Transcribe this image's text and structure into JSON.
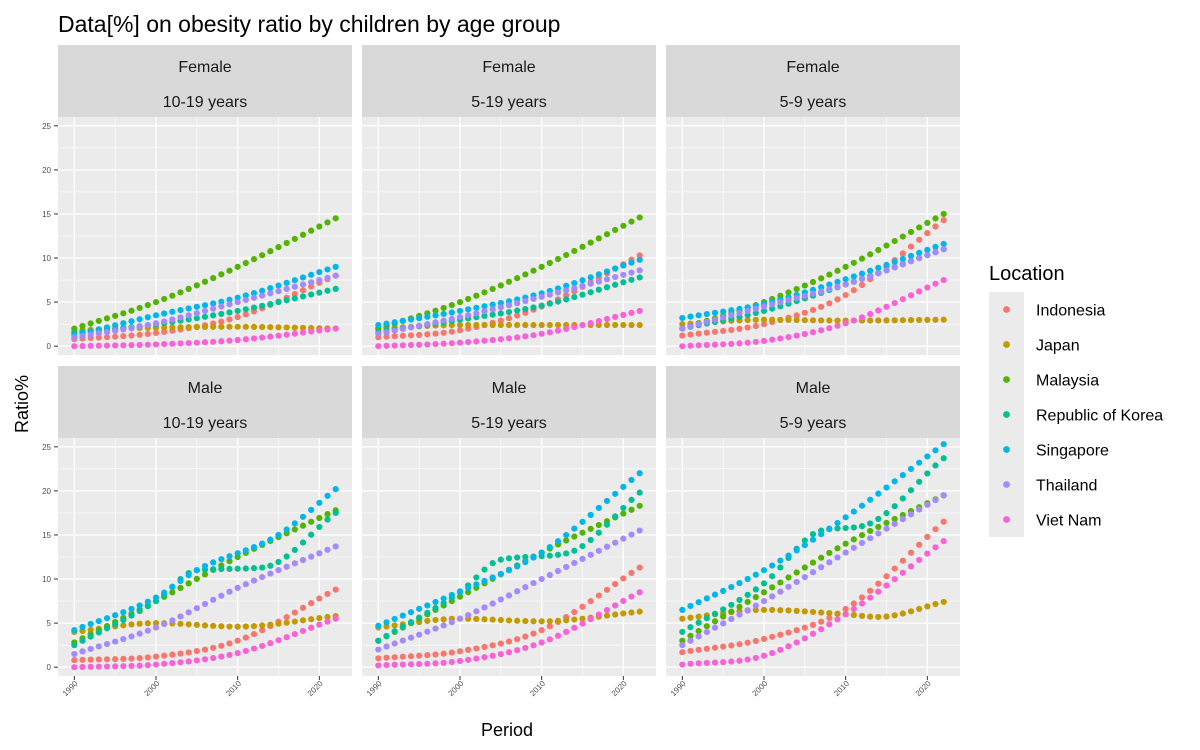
{
  "chart_data": {
    "type": "scatter",
    "title": "Data[%]  on obesity ratio by children by age group",
    "xlabel": "Period",
    "ylabel": "Ratio%",
    "xlim": [
      1988,
      2024
    ],
    "ylim": [
      -1,
      26
    ],
    "x_ticks": [
      "1990",
      "2000",
      "2010",
      "2020"
    ],
    "y_ticks": [
      "0",
      "5",
      "10",
      "15",
      "20",
      "25"
    ],
    "x_ticks_values": [
      1990,
      2000,
      2010,
      2020
    ],
    "y_ticks_values": [
      0,
      5,
      10,
      15,
      20,
      25
    ],
    "x_range": [
      1990,
      2022
    ],
    "facet_rows": [
      "Female",
      "Male"
    ],
    "facet_cols": [
      "10-19 years",
      "5-19  years",
      "5-9 years"
    ],
    "legend": {
      "title": "Location",
      "position": "right",
      "entries": [
        "Indonesia",
        "Japan",
        "Malaysia",
        "Republic of Korea",
        "Singapore",
        "Thailand",
        "Viet Nam"
      ],
      "colors": [
        "#F8766D",
        "#C49A00",
        "#53B400",
        "#00C094",
        "#00B6EB",
        "#A58AFF",
        "#FB61D7"
      ]
    },
    "panels": [
      {
        "row": "Female",
        "col": "10-19 years",
        "series": [
          {
            "name": "Indonesia",
            "anchors": [
              [
                1990,
                0.8
              ],
              [
                2000,
                1.5
              ],
              [
                2010,
                3.3
              ],
              [
                2022,
                8.0
              ]
            ]
          },
          {
            "name": "Japan",
            "anchors": [
              [
                1990,
                1.8
              ],
              [
                2000,
                2.1
              ],
              [
                2010,
                2.2
              ],
              [
                2022,
                2.0
              ]
            ]
          },
          {
            "name": "Malaysia",
            "anchors": [
              [
                1990,
                2.0
              ],
              [
                2000,
                5.0
              ],
              [
                2010,
                9.0
              ],
              [
                2022,
                14.5
              ]
            ]
          },
          {
            "name": "Republic of Korea",
            "anchors": [
              [
                1990,
                1.5
              ],
              [
                2000,
                2.5
              ],
              [
                2010,
                4.0
              ],
              [
                2022,
                6.5
              ]
            ]
          },
          {
            "name": "Singapore",
            "anchors": [
              [
                1990,
                1.2
              ],
              [
                2000,
                3.5
              ],
              [
                2010,
                5.5
              ],
              [
                2022,
                9.0
              ]
            ]
          },
          {
            "name": "Thailand",
            "anchors": [
              [
                1990,
                1.0
              ],
              [
                2000,
                2.6
              ],
              [
                2010,
                5.0
              ],
              [
                2022,
                8.0
              ]
            ]
          },
          {
            "name": "Viet Nam",
            "anchors": [
              [
                1990,
                0.0
              ],
              [
                2000,
                0.2
              ],
              [
                2010,
                0.7
              ],
              [
                2022,
                2.0
              ]
            ]
          }
        ]
      },
      {
        "row": "Female",
        "col": "5-19  years",
        "series": [
          {
            "name": "Indonesia",
            "anchors": [
              [
                1990,
                1.0
              ],
              [
                2000,
                1.8
              ],
              [
                2010,
                4.5
              ],
              [
                2022,
                10.3
              ]
            ]
          },
          {
            "name": "Japan",
            "anchors": [
              [
                1990,
                2.0
              ],
              [
                2000,
                2.4
              ],
              [
                2010,
                2.4
              ],
              [
                2022,
                2.4
              ]
            ]
          },
          {
            "name": "Malaysia",
            "anchors": [
              [
                1990,
                2.0
              ],
              [
                2000,
                5.0
              ],
              [
                2010,
                9.0
              ],
              [
                2022,
                14.6
              ]
            ]
          },
          {
            "name": "Republic of Korea",
            "anchors": [
              [
                1990,
                1.6
              ],
              [
                2000,
                3.0
              ],
              [
                2010,
                4.6
              ],
              [
                2022,
                7.8
              ]
            ]
          },
          {
            "name": "Singapore",
            "anchors": [
              [
                1990,
                2.4
              ],
              [
                2000,
                4.0
              ],
              [
                2010,
                6.0
              ],
              [
                2022,
                9.8
              ]
            ]
          },
          {
            "name": "Thailand",
            "anchors": [
              [
                1990,
                1.4
              ],
              [
                2000,
                3.3
              ],
              [
                2010,
                5.6
              ],
              [
                2022,
                8.6
              ]
            ]
          },
          {
            "name": "Viet Nam",
            "anchors": [
              [
                1990,
                0.0
              ],
              [
                2000,
                0.4
              ],
              [
                2010,
                1.4
              ],
              [
                2022,
                4.0
              ]
            ]
          }
        ]
      },
      {
        "row": "Female",
        "col": "5-9 years",
        "series": [
          {
            "name": "Indonesia",
            "anchors": [
              [
                1990,
                1.2
              ],
              [
                2000,
                2.5
              ],
              [
                2010,
                5.8
              ],
              [
                2022,
                14.3
              ]
            ]
          },
          {
            "name": "Japan",
            "anchors": [
              [
                1990,
                2.5
              ],
              [
                2000,
                3.0
              ],
              [
                2010,
                2.9
              ],
              [
                2022,
                3.0
              ]
            ]
          },
          {
            "name": "Malaysia",
            "anchors": [
              [
                1990,
                2.0
              ],
              [
                2000,
                5.0
              ],
              [
                2010,
                9.0
              ],
              [
                2022,
                15.0
              ]
            ]
          },
          {
            "name": "Republic of Korea",
            "anchors": [
              [
                1990,
                2.0
              ],
              [
                2000,
                4.0
              ],
              [
                2010,
                7.0
              ],
              [
                2022,
                11.0
              ]
            ]
          },
          {
            "name": "Singapore",
            "anchors": [
              [
                1990,
                3.2
              ],
              [
                2000,
                4.8
              ],
              [
                2010,
                7.6
              ],
              [
                2022,
                11.6
              ]
            ]
          },
          {
            "name": "Thailand",
            "anchors": [
              [
                1990,
                2.0
              ],
              [
                2000,
                4.5
              ],
              [
                2010,
                7.0
              ],
              [
                2022,
                11.0
              ]
            ]
          },
          {
            "name": "Viet Nam",
            "anchors": [
              [
                1990,
                0.0
              ],
              [
                2000,
                0.6
              ],
              [
                2010,
                2.6
              ],
              [
                2022,
                7.5
              ]
            ]
          }
        ]
      },
      {
        "row": "Male",
        "col": "10-19 years",
        "series": [
          {
            "name": "Indonesia",
            "anchors": [
              [
                1990,
                0.8
              ],
              [
                2000,
                1.2
              ],
              [
                2010,
                3.0
              ],
              [
                2022,
                8.8
              ]
            ]
          },
          {
            "name": "Japan",
            "anchors": [
              [
                1990,
                4.0
              ],
              [
                2000,
                5.0
              ],
              [
                2010,
                4.6
              ],
              [
                2022,
                5.8
              ]
            ]
          },
          {
            "name": "Malaysia",
            "anchors": [
              [
                1990,
                2.8
              ],
              [
                2000,
                7.5
              ],
              [
                2010,
                12.5
              ],
              [
                2022,
                17.8
              ]
            ]
          },
          {
            "name": "Republic of Korea",
            "anchors": [
              [
                1990,
                2.5
              ],
              [
                2000,
                7.5
              ],
              [
                2005,
                11.0
              ],
              [
                2013,
                11.3
              ],
              [
                2022,
                17.5
              ]
            ]
          },
          {
            "name": "Singapore",
            "anchors": [
              [
                1990,
                4.2
              ],
              [
                2000,
                7.9
              ],
              [
                2005,
                11.0
              ],
              [
                2015,
                15.0
              ],
              [
                2022,
                20.2
              ]
            ]
          },
          {
            "name": "Thailand",
            "anchors": [
              [
                1990,
                1.5
              ],
              [
                2000,
                4.5
              ],
              [
                2010,
                9.0
              ],
              [
                2022,
                13.7
              ]
            ]
          },
          {
            "name": "Viet Nam",
            "anchors": [
              [
                1990,
                0.0
              ],
              [
                2000,
                0.3
              ],
              [
                2010,
                1.6
              ],
              [
                2022,
                5.5
              ]
            ]
          }
        ]
      },
      {
        "row": "Male",
        "col": "5-19  years",
        "series": [
          {
            "name": "Indonesia",
            "anchors": [
              [
                1990,
                1.0
              ],
              [
                2000,
                1.8
              ],
              [
                2010,
                4.2
              ],
              [
                2022,
                11.3
              ]
            ]
          },
          {
            "name": "Japan",
            "anchors": [
              [
                1990,
                4.5
              ],
              [
                2000,
                5.5
              ],
              [
                2010,
                5.2
              ],
              [
                2022,
                6.3
              ]
            ]
          },
          {
            "name": "Malaysia",
            "anchors": [
              [
                1990,
                3.0
              ],
              [
                2000,
                8.0
              ],
              [
                2010,
                13.0
              ],
              [
                2022,
                18.3
              ]
            ]
          },
          {
            "name": "Republic of Korea",
            "anchors": [
              [
                1990,
                3.0
              ],
              [
                2000,
                8.5
              ],
              [
                2005,
                12.2
              ],
              [
                2013,
                12.9
              ],
              [
                2022,
                19.8
              ]
            ]
          },
          {
            "name": "Singapore",
            "anchors": [
              [
                1990,
                4.7
              ],
              [
                2000,
                8.6
              ],
              [
                2010,
                13.0
              ],
              [
                2022,
                22.0
              ]
            ]
          },
          {
            "name": "Thailand",
            "anchors": [
              [
                1990,
                2.0
              ],
              [
                2000,
                5.5
              ],
              [
                2010,
                10.0
              ],
              [
                2022,
                15.5
              ]
            ]
          },
          {
            "name": "Viet Nam",
            "anchors": [
              [
                1990,
                0.2
              ],
              [
                2000,
                0.7
              ],
              [
                2010,
                2.8
              ],
              [
                2022,
                8.5
              ]
            ]
          }
        ]
      },
      {
        "row": "Male",
        "col": "5-9 years",
        "series": [
          {
            "name": "Indonesia",
            "anchors": [
              [
                1990,
                1.7
              ],
              [
                2000,
                3.2
              ],
              [
                2010,
                6.6
              ],
              [
                2022,
                16.5
              ]
            ]
          },
          {
            "name": "Japan",
            "anchors": [
              [
                1990,
                5.5
              ],
              [
                2000,
                6.5
              ],
              [
                2010,
                6.0
              ],
              [
                2014,
                5.7
              ],
              [
                2022,
                7.4
              ]
            ]
          },
          {
            "name": "Malaysia",
            "anchors": [
              [
                1990,
                3.0
              ],
              [
                2000,
                8.5
              ],
              [
                2010,
                14.0
              ],
              [
                2022,
                19.5
              ]
            ]
          },
          {
            "name": "Republic of Korea",
            "anchors": [
              [
                1990,
                4.0
              ],
              [
                2000,
                9.5
              ],
              [
                2007,
                15.5
              ],
              [
                2012,
                16.0
              ],
              [
                2022,
                23.7
              ]
            ]
          },
          {
            "name": "Singapore",
            "anchors": [
              [
                1990,
                6.5
              ],
              [
                2000,
                11.0
              ],
              [
                2010,
                17.0
              ],
              [
                2022,
                25.3
              ]
            ]
          },
          {
            "name": "Thailand",
            "anchors": [
              [
                1990,
                2.5
              ],
              [
                2000,
                7.5
              ],
              [
                2010,
                13.0
              ],
              [
                2022,
                19.5
              ]
            ]
          },
          {
            "name": "Viet Nam",
            "anchors": [
              [
                1990,
                0.3
              ],
              [
                2000,
                1.3
              ],
              [
                2010,
                6.0
              ],
              [
                2022,
                14.3
              ]
            ]
          }
        ]
      }
    ]
  }
}
